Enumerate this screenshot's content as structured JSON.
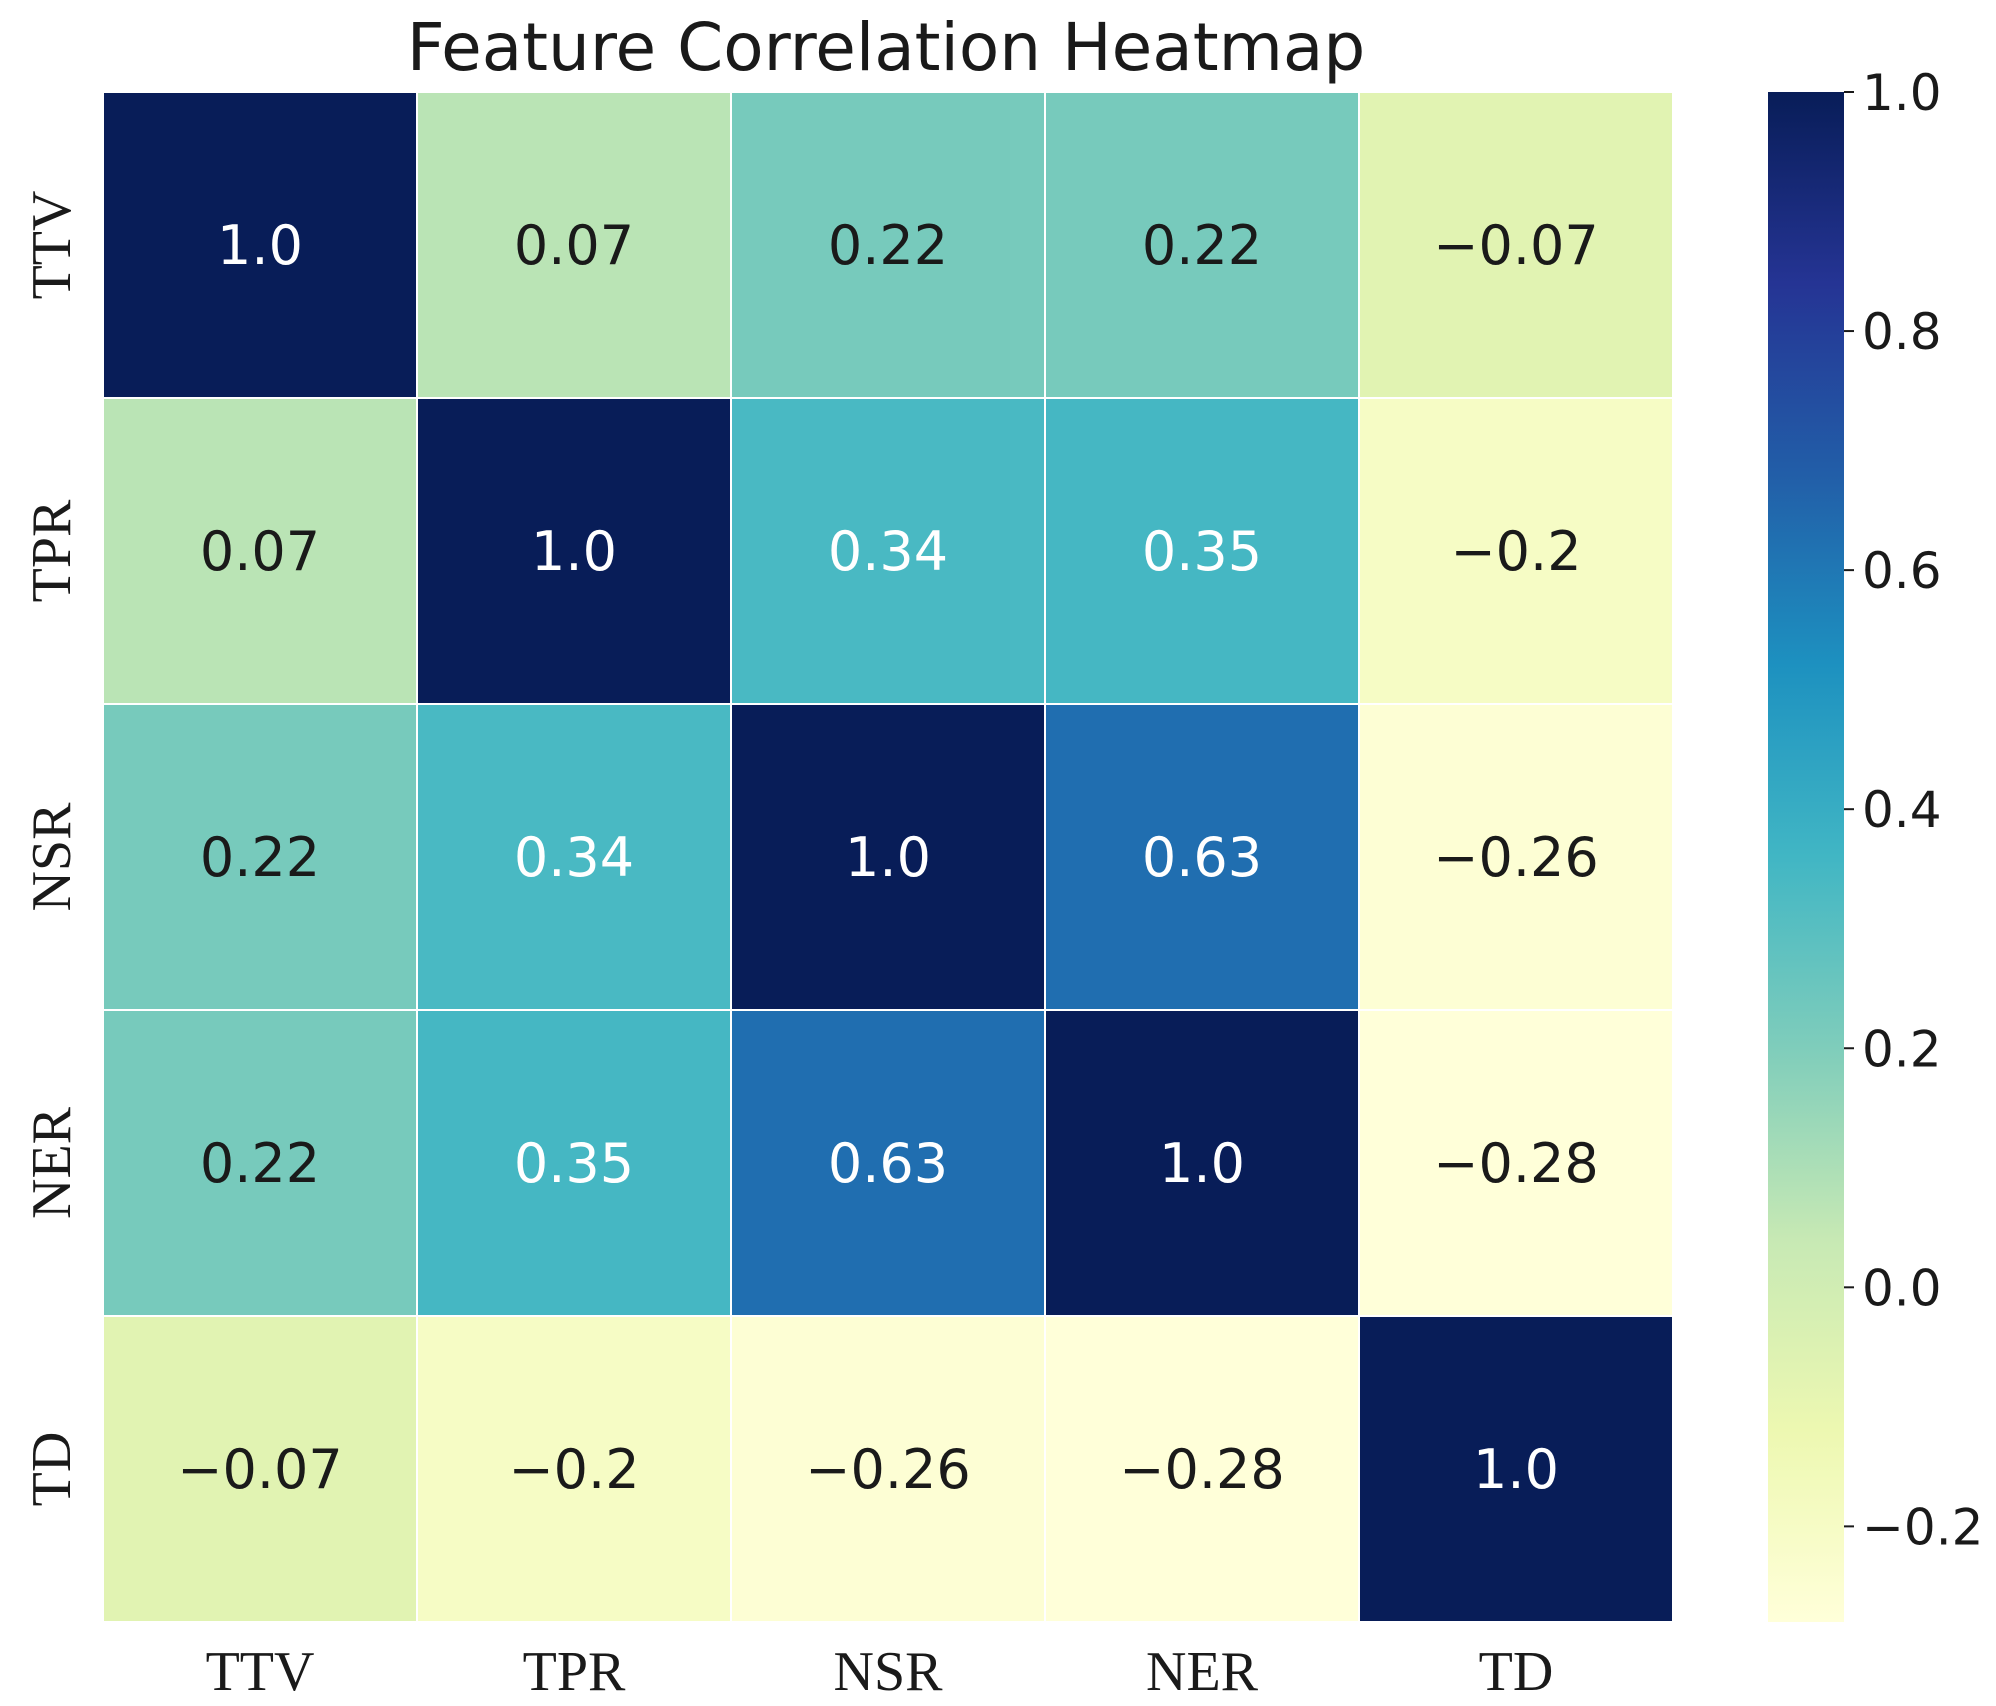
{
  "chart_data": {
    "type": "heatmap",
    "title": "Feature Correlation Heatmap",
    "x_labels": [
      "TTV",
      "TPR",
      "NSR",
      "NER",
      "TD"
    ],
    "y_labels": [
      "TTV",
      "TPR",
      "NSR",
      "NER",
      "TD"
    ],
    "values": [
      [
        1.0,
        0.07,
        0.22,
        0.22,
        -0.07
      ],
      [
        0.07,
        1.0,
        0.34,
        0.35,
        -0.2
      ],
      [
        0.22,
        0.34,
        1.0,
        0.63,
        -0.26
      ],
      [
        0.22,
        0.35,
        0.63,
        1.0,
        -0.28
      ],
      [
        -0.07,
        -0.2,
        -0.26,
        -0.28,
        1.0
      ]
    ],
    "cell_labels": [
      [
        "1.0",
        "0.07",
        "0.22",
        "0.22",
        "−0.07"
      ],
      [
        "0.07",
        "1.0",
        "0.34",
        "0.35",
        "−0.2"
      ],
      [
        "0.22",
        "0.34",
        "1.0",
        "0.63",
        "−0.26"
      ],
      [
        "0.22",
        "0.35",
        "0.63",
        "1.0",
        "−0.28"
      ],
      [
        "−0.07",
        "−0.2",
        "−0.26",
        "−0.28",
        "1.0"
      ]
    ],
    "colorbar": {
      "range": [
        -0.28,
        1.0
      ],
      "ticks": [
        1.0,
        0.8,
        0.6,
        0.4,
        0.2,
        0.0,
        -0.2
      ],
      "tick_labels": [
        "1.0",
        "0.8",
        "0.6",
        "0.4",
        "0.2",
        "0.0",
        "−0.2"
      ]
    },
    "colormap": "YlGnBu",
    "colormap_stops": [
      "#ffffd9",
      "#edf8b1",
      "#c7e9b4",
      "#7fcdbb",
      "#41b6c4",
      "#1d91c0",
      "#225ea8",
      "#253494",
      "#081d58"
    ],
    "colors": {
      "light_text": "#ffffff",
      "dark_text": "#1a1a1a",
      "grid_line": "#ffffff"
    }
  }
}
